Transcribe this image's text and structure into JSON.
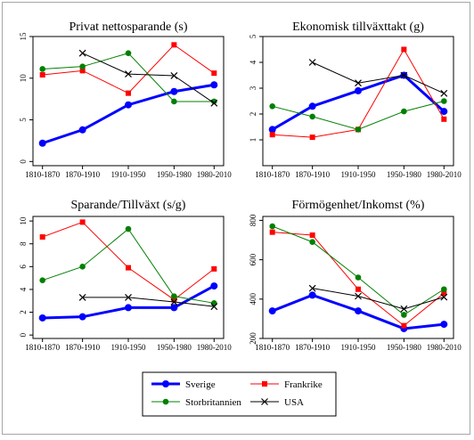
{
  "chart_data": [
    {
      "type": "line",
      "title": "Privat nettosparande (s)",
      "categories": [
        "1810-1870",
        "1870-1910",
        "1910-1950",
        "1950-1980",
        "1980-2010"
      ],
      "ylim": [
        -0.5,
        15
      ],
      "yticks": [
        "0",
        "5",
        "10",
        "15"
      ],
      "ytick_values": [
        0,
        5,
        10,
        15
      ],
      "series": [
        {
          "name": "Sverige",
          "color": "#0000ff",
          "marker": "circle",
          "values": [
            2.2,
            3.8,
            6.8,
            8.4,
            9.2
          ]
        },
        {
          "name": "Frankrike",
          "color": "#ff0000",
          "marker": "square",
          "values": [
            10.4,
            10.9,
            8.2,
            14.0,
            10.6
          ]
        },
        {
          "name": "Storbritannien",
          "color": "#008000",
          "marker": "circle",
          "values": [
            11.1,
            11.4,
            13.0,
            7.2,
            7.2
          ]
        },
        {
          "name": "USA",
          "color": "#000000",
          "marker": "x",
          "values": [
            null,
            13.0,
            10.5,
            10.3,
            7.0
          ]
        }
      ]
    },
    {
      "type": "line",
      "title": "Ekonomisk tillväxttakt (g)",
      "categories": [
        "1810-1870",
        "1870-1910",
        "1910-1950",
        "1950-1980",
        "1980-2010"
      ],
      "ylim": [
        0,
        5
      ],
      "yticks": [
        "1",
        "2",
        "3",
        "4",
        "5"
      ],
      "ytick_values": [
        1,
        2,
        3,
        4,
        5
      ],
      "series": [
        {
          "name": "Sverige",
          "color": "#0000ff",
          "marker": "circle",
          "values": [
            1.4,
            2.3,
            2.9,
            3.5,
            2.1
          ]
        },
        {
          "name": "Frankrike",
          "color": "#ff0000",
          "marker": "square",
          "values": [
            1.2,
            1.1,
            1.4,
            4.5,
            1.8
          ]
        },
        {
          "name": "Storbritannien",
          "color": "#008000",
          "marker": "circle",
          "values": [
            2.3,
            1.9,
            1.4,
            2.1,
            2.5
          ]
        },
        {
          "name": "USA",
          "color": "#000000",
          "marker": "x",
          "values": [
            null,
            4.0,
            3.2,
            3.5,
            2.8
          ]
        }
      ]
    },
    {
      "type": "line",
      "title": "Sparande/Tillväxt (s/g)",
      "categories": [
        "1810-1870",
        "1870-1910",
        "1910-1950",
        "1950-1980",
        "1980-2010"
      ],
      "ylim": [
        -0.3,
        10.4
      ],
      "yticks": [
        "0",
        "2",
        "4",
        "6",
        "8",
        "10"
      ],
      "ytick_values": [
        0,
        2,
        4,
        6,
        8,
        10
      ],
      "series": [
        {
          "name": "Sverige",
          "color": "#0000ff",
          "marker": "circle",
          "values": [
            1.5,
            1.6,
            2.4,
            2.4,
            4.3
          ]
        },
        {
          "name": "Frankrike",
          "color": "#ff0000",
          "marker": "square",
          "values": [
            8.6,
            9.9,
            5.9,
            3.1,
            5.8
          ]
        },
        {
          "name": "Storbritannien",
          "color": "#008000",
          "marker": "circle",
          "values": [
            4.8,
            6.0,
            9.3,
            3.4,
            2.8
          ]
        },
        {
          "name": "USA",
          "color": "#000000",
          "marker": "x",
          "values": [
            null,
            3.3,
            3.3,
            2.9,
            2.5
          ]
        }
      ]
    },
    {
      "type": "line",
      "title": "Förmögenhet/Inkomst (%)",
      "categories": [
        "1810-1870",
        "1870-1910",
        "1910-1950",
        "1950-1980",
        "1980-2010"
      ],
      "ylim": [
        200,
        820
      ],
      "yticks": [
        "200",
        "400",
        "600",
        "800"
      ],
      "ytick_values": [
        200,
        400,
        600,
        800
      ],
      "series": [
        {
          "name": "Sverige",
          "color": "#0000ff",
          "marker": "circle",
          "values": [
            340,
            420,
            340,
            250,
            272
          ]
        },
        {
          "name": "Frankrike",
          "color": "#ff0000",
          "marker": "square",
          "values": [
            740,
            725,
            450,
            265,
            430
          ]
        },
        {
          "name": "Storbritannien",
          "color": "#008000",
          "marker": "circle",
          "values": [
            770,
            690,
            510,
            320,
            450
          ]
        },
        {
          "name": "USA",
          "color": "#000000",
          "marker": "x",
          "values": [
            null,
            455,
            415,
            350,
            410
          ]
        }
      ]
    }
  ],
  "legend": {
    "placement": "bottom-center",
    "entries": [
      {
        "name": "Sverige",
        "color": "#0000ff",
        "marker": "circle"
      },
      {
        "name": "Frankrike",
        "color": "#ff0000",
        "marker": "square"
      },
      {
        "name": "Storbritannien",
        "color": "#008000",
        "marker": "circle"
      },
      {
        "name": "USA",
        "color": "#000000",
        "marker": "x"
      }
    ]
  }
}
